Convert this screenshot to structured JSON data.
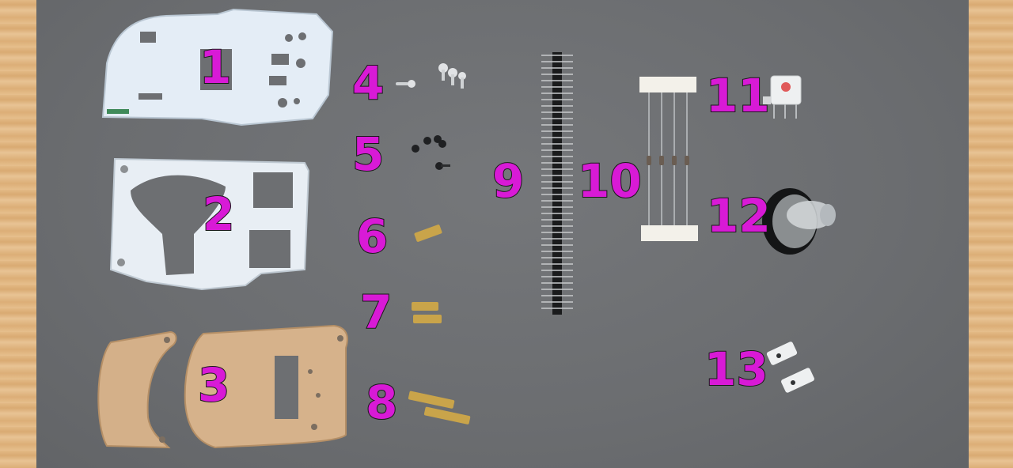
{
  "labels": {
    "part_1": "1",
    "part_2": "2",
    "part_3": "3",
    "part_4": "4",
    "part_5": "5",
    "part_6": "6",
    "part_7": "7",
    "part_8": "8",
    "part_9": "9",
    "part_10": "10",
    "part_11": "11",
    "part_12": "12",
    "part_13": "13"
  },
  "colors": {
    "label_fill": "#d81ad6",
    "label_outline": "#1a1a1a",
    "mat": "#6f7174",
    "pcb_white": "#e4edf6",
    "acrylic": "#d4b089",
    "brass": "#c9a44a"
  }
}
